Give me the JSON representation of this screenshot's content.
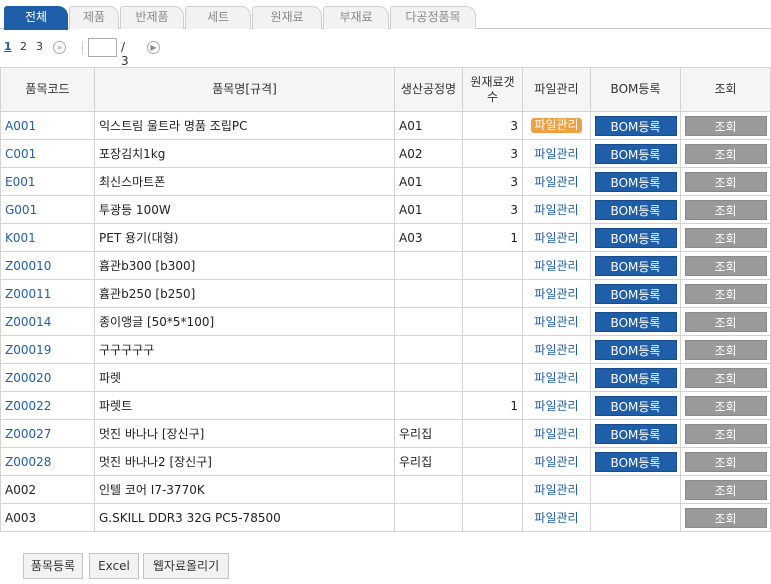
{
  "tabs": [
    "전체",
    "제품",
    "반제품",
    "세트",
    "원재료",
    "부재료",
    "다공정품목"
  ],
  "pager": {
    "pages": [
      "1",
      "2",
      "3"
    ],
    "next_icon": "double-chevron-right-icon",
    "page_input": "",
    "total": "/ 3",
    "go_icon": "play-icon"
  },
  "table": {
    "headers": {
      "code": "품목코드",
      "name": "품목명[규격]",
      "process": "생산공정명",
      "material_count": "원재료갯수",
      "file": "파일관리",
      "bom": "BOM등록",
      "view": "조회"
    },
    "rows": [
      {
        "code": "A001",
        "name": "익스트림 울트라 명품 조립PC",
        "process": "A01",
        "count": "3",
        "file": "파일관리",
        "bom": "BOM등록",
        "view": "조회"
      },
      {
        "code": "C001",
        "name": "포장김치1kg",
        "process": "A02",
        "count": "3",
        "file": "파일관리",
        "bom": "BOM등록",
        "view": "조회"
      },
      {
        "code": "E001",
        "name": "최신스마트폰",
        "process": "A01",
        "count": "3",
        "file": "파일관리",
        "bom": "BOM등록",
        "view": "조회"
      },
      {
        "code": "G001",
        "name": "투광등 100W",
        "process": "A01",
        "count": "3",
        "file": "파일관리",
        "bom": "BOM등록",
        "view": "조회"
      },
      {
        "code": "K001",
        "name": "PET 용기(대형)",
        "process": "A03",
        "count": "1",
        "file": "파일관리",
        "bom": "BOM등록",
        "view": "조회"
      },
      {
        "code": "Z00010",
        "name": "흄관b300 [b300]",
        "process": "",
        "count": "",
        "file": "파일관리",
        "bom": "BOM등록",
        "view": "조회"
      },
      {
        "code": "Z00011",
        "name": "흄관b250 [b250]",
        "process": "",
        "count": "",
        "file": "파일관리",
        "bom": "BOM등록",
        "view": "조회"
      },
      {
        "code": "Z00014",
        "name": "종이앵글 [50*5*100]",
        "process": "",
        "count": "",
        "file": "파일관리",
        "bom": "BOM등록",
        "view": "조회"
      },
      {
        "code": "Z00019",
        "name": "구구구구구",
        "process": "",
        "count": "",
        "file": "파일관리",
        "bom": "BOM등록",
        "view": "조회"
      },
      {
        "code": "Z00020",
        "name": "파렛",
        "process": "",
        "count": "",
        "file": "파일관리",
        "bom": "BOM등록",
        "view": "조회"
      },
      {
        "code": "Z00022",
        "name": "파렛트",
        "process": "",
        "count": "1",
        "file": "파일관리",
        "bom": "BOM등록",
        "view": "조회"
      },
      {
        "code": "Z00027",
        "name": "멋진 바나나 [장신구]",
        "process": "우리집",
        "count": "",
        "file": "파일관리",
        "bom": "BOM등록",
        "view": "조회"
      },
      {
        "code": "Z00028",
        "name": "멋진 바나나2 [장신구]",
        "process": "우리집",
        "count": "",
        "file": "파일관리",
        "bom": "BOM등록",
        "view": "조회"
      },
      {
        "code": "A002",
        "name": "인텔 코어 I7-3770K",
        "process": "",
        "count": "",
        "file": "파일관리",
        "bom": "",
        "view": "조회"
      },
      {
        "code": "A003",
        "name": "G.SKILL DDR3 32G PC5-78500",
        "process": "",
        "count": "",
        "file": "파일관리",
        "bom": "",
        "view": "조회"
      }
    ]
  },
  "bottom": {
    "register": "품목등록",
    "excel": "Excel",
    "upload": "웹자료올리기"
  },
  "colors": {
    "accent": "#1f5ea8",
    "highlight": "#f0a040",
    "view_button": "#9a9a9a"
  }
}
